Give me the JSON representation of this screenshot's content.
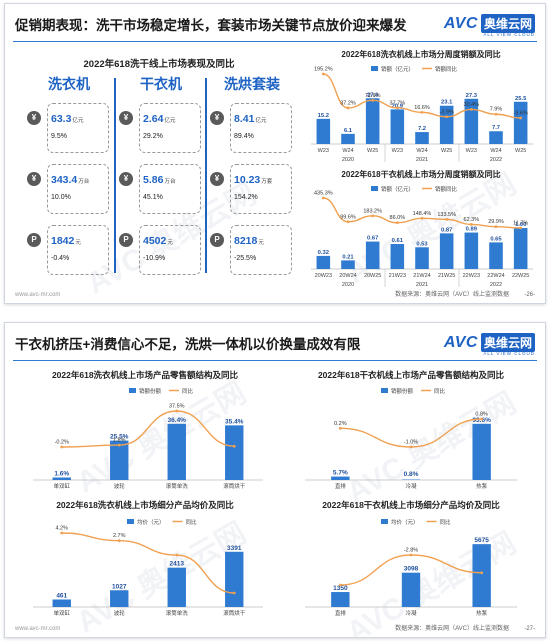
{
  "slide1": {
    "title": "促销期表现：洗干市场稳定增长，套装市场关键节点放价迎来爆发",
    "logo": {
      "avc": "AVC",
      "cn": "奥维云网",
      "sub": "ALL VIEW CLOUD"
    },
    "panel_title": "2022年618洗干线上市场表现及同比",
    "categories": [
      {
        "name": "洗衣机",
        "metrics": [
          {
            "icon": "¥",
            "value": "63.3",
            "unit": "亿元",
            "pct": "9.5%"
          },
          {
            "icon": "¥",
            "value": "343.4",
            "unit": "万台",
            "pct": "10.0%"
          },
          {
            "icon": "P",
            "value": "1842",
            "unit": "元",
            "pct": "-0.4%"
          }
        ]
      },
      {
        "name": "干衣机",
        "metrics": [
          {
            "icon": "¥",
            "value": "2.64",
            "unit": "亿元",
            "pct": "29.2%"
          },
          {
            "icon": "¥",
            "value": "5.86",
            "unit": "万台",
            "pct": "45.1%"
          },
          {
            "icon": "P",
            "value": "4502",
            "unit": "元",
            "pct": "-10.9%"
          }
        ]
      },
      {
        "name": "洗烘套装",
        "metrics": [
          {
            "icon": "¥",
            "value": "8.41",
            "unit": "亿元",
            "pct": "89.4%"
          },
          {
            "icon": "¥",
            "value": "10.23",
            "unit": "万套",
            "pct": "154.2%"
          },
          {
            "icon": "P",
            "value": "8218",
            "unit": "元",
            "pct": "-25.5%"
          }
        ]
      }
    ],
    "footer_url": "www.avc-mr.com",
    "footer_src": "数据来源：奥维云网（AVC）线上监测数据",
    "page": "-26-"
  },
  "slide2": {
    "title": "干衣机挤压+消费信心不足，洗烘一体机以价换量成效有限",
    "footer_url": "www.avc-mr.com",
    "footer_src": "数据来源：奥维云网（AVC）线上监测数据",
    "page": "-27-"
  },
  "chart_data": [
    {
      "id": "washer-quarterly",
      "type": "bar",
      "title": "2022年618洗衣机线上市场分周度销额及同比",
      "legend": [
        "销额（亿元）",
        "销额同比"
      ],
      "categories": [
        "W23",
        "W24",
        "W25",
        "W23",
        "W24",
        "W25",
        "W23",
        "W24",
        "W25"
      ],
      "groups": [
        "2020",
        "2021",
        "2022"
      ],
      "series": [
        {
          "name": "销额（亿元）",
          "kind": "bar",
          "values": [
            15.2,
            6.1,
            27.6,
            20.9,
            7.2,
            23.1,
            27.3,
            7.7,
            25.5
          ]
        },
        {
          "name": "销额同比",
          "kind": "line",
          "values": [
            195.2,
            37.2,
            72.6,
            37.7,
            16.6,
            -3.9,
            30.4,
            7.9,
            -9.6
          ]
        }
      ],
      "value_labels": [
        "15.2",
        "6.1",
        "27.6",
        "20.9",
        "7.2",
        "23.1",
        "27.3",
        "7.7",
        "25.5"
      ],
      "pct_labels": [
        "195.2%",
        "37.2%",
        "72.6%",
        "37.7%",
        "16.6%",
        "-3.9%",
        "30.4%",
        "7.9%",
        "-9.6%"
      ]
    },
    {
      "id": "dryer-weekly",
      "type": "bar",
      "title": "2022年618干衣机线上市场分周度销额及同比",
      "legend": [
        "销额（亿元）",
        "销额同比"
      ],
      "categories": [
        "20W23",
        "20W24",
        "20W25",
        "21W23",
        "21W24",
        "21W25",
        "22W23",
        "22W24",
        "22W25"
      ],
      "groups": [
        "2020",
        "2021",
        "2022"
      ],
      "series": [
        {
          "name": "销额（亿元）",
          "kind": "bar",
          "values": [
            0.32,
            0.21,
            0.67,
            0.61,
            0.53,
            0.87,
            0.89,
            0.65,
            1.0
          ]
        },
        {
          "name": "销额同比",
          "kind": "line",
          "values": [
            435.3,
            99.6,
            183.2,
            86.0,
            148.4,
            133.5,
            62.3,
            29.9,
            11.7
          ]
        }
      ],
      "value_labels": [
        "0.32",
        "0.21",
        "0.67",
        "0.61",
        "0.53",
        "0.87",
        "0.89",
        "0.65",
        "1.00"
      ],
      "pct_labels": [
        "435.3%",
        "99.6%",
        "183.2%",
        "86.0%",
        "148.4%",
        "133.5%",
        "62.3%",
        "29.9%",
        "11.7%"
      ]
    },
    {
      "id": "washer-structure",
      "type": "bar",
      "title": "2022年618洗衣机线上市场产品零售额结构及同比",
      "legend": [
        "销额份额",
        "同比"
      ],
      "categories": [
        "单双缸",
        "波轮",
        "滚筒单洗",
        "滚筒烘干"
      ],
      "series": [
        {
          "name": "销额份额",
          "kind": "bar",
          "values": [
            1.6,
            25.5,
            36.4,
            35.4
          ]
        },
        {
          "name": "同比",
          "kind": "line",
          "values": [
            -0.2,
            1.8,
            37.5,
            0.6
          ]
        }
      ],
      "value_labels": [
        "1.6%",
        "25.5%",
        "36.4%",
        "35.4%"
      ],
      "pct_labels": [
        "-0.2%",
        "1.8%",
        "37.5%",
        ""
      ]
    },
    {
      "id": "dryer-structure",
      "type": "bar",
      "title": "2022年618干衣机线上市场产品零售额结构及同比",
      "legend": [
        "销额份额",
        "同比"
      ],
      "categories": [
        "直排",
        "冷凝",
        "热泵"
      ],
      "series": [
        {
          "name": "销额份额",
          "kind": "bar",
          "values": [
            5.7,
            0.8,
            93.6
          ]
        },
        {
          "name": "同比",
          "kind": "line",
          "values": [
            0.2,
            -1.0,
            0.8
          ]
        }
      ],
      "value_labels": [
        "5.7%",
        "0.8%",
        "93.6%"
      ],
      "pct_labels": [
        "0.2%",
        "-1.0%",
        "0.8%"
      ]
    },
    {
      "id": "washer-price",
      "type": "bar",
      "title": "2022年618洗衣机线上市场细分产品均价及同比",
      "legend": [
        "均价（元）",
        "同比"
      ],
      "categories": [
        "单双缸",
        "波轮",
        "滚筒单洗",
        "滚筒烘干"
      ],
      "series": [
        {
          "name": "均价（元）",
          "kind": "bar",
          "values": [
            461,
            1027,
            2413,
            3391
          ]
        },
        {
          "name": "同比",
          "kind": "line",
          "values": [
            4.2,
            2.7,
            -0.1,
            -7.5
          ]
        }
      ],
      "value_labels": [
        "461",
        "1027",
        "2413",
        "3391"
      ],
      "pct_labels": [
        "4.2%",
        "2.7%",
        "",
        ""
      ]
    },
    {
      "id": "dryer-price",
      "type": "bar",
      "title": "2022年618干衣机线上市场细分产品均价及同比",
      "legend": [
        "均价（元）",
        "同比"
      ],
      "categories": [
        "直排",
        "冷凝",
        "热泵"
      ],
      "series": [
        {
          "name": "均价（元）",
          "kind": "bar",
          "values": [
            1350,
            3098,
            5675
          ]
        },
        {
          "name": "同比",
          "kind": "line",
          "values": [
            -7.7,
            -2.8,
            -5.7
          ]
        }
      ],
      "value_labels": [
        "1350",
        "3098",
        "5675"
      ],
      "pct_labels": [
        "",
        "-2.8%",
        ""
      ]
    }
  ]
}
